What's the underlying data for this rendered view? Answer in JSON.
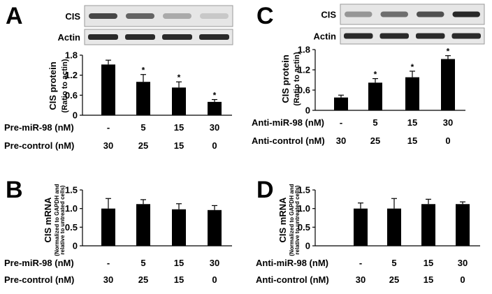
{
  "chart_data": [
    {
      "panel": "A",
      "type": "bar",
      "blot_labels": [
        "CIS",
        "Actin"
      ],
      "ylabel": "CIS protein",
      "ylabel_sub": "(Ratio to actin)",
      "ylim": [
        0,
        1.8
      ],
      "yticks": [
        "0",
        "0.6",
        "1.2",
        "1.8"
      ],
      "categories": [
        "-",
        "5",
        "15",
        "30"
      ],
      "values": [
        1.52,
        1.0,
        0.83,
        0.4
      ],
      "errors": [
        0.13,
        0.22,
        0.17,
        0.07
      ],
      "significance": [
        "",
        "*",
        "*",
        "*"
      ],
      "treatment_label": "Pre-miR-98 (nM)",
      "treatment_values": [
        "-",
        "5",
        "15",
        "30"
      ],
      "control_label": "Pre-control (nM)",
      "control_values": [
        "30",
        "25",
        "15",
        "0"
      ],
      "cis_band_intensity": [
        0.8,
        0.65,
        0.3,
        0.15
      ]
    },
    {
      "panel": "C",
      "type": "bar",
      "blot_labels": [
        "CIS",
        "Actin"
      ],
      "ylabel": "CIS protein",
      "ylabel_sub": "(Ratio to actin)",
      "ylim": [
        0,
        1.8
      ],
      "yticks": [
        "0",
        "0.6",
        "1.2",
        "1.8"
      ],
      "categories": [
        "-",
        "5",
        "15",
        "30"
      ],
      "values": [
        0.38,
        0.82,
        0.98,
        1.52
      ],
      "errors": [
        0.07,
        0.12,
        0.18,
        0.1
      ],
      "significance": [
        "",
        "*",
        "*",
        "*"
      ],
      "treatment_label": "Anti-miR-98 (nM)",
      "treatment_values": [
        "-",
        "5",
        "15",
        "30"
      ],
      "control_label": "Anti-control (nM)",
      "control_values": [
        "30",
        "25",
        "15",
        "0"
      ],
      "cis_band_intensity": [
        0.4,
        0.6,
        0.75,
        0.95
      ]
    },
    {
      "panel": "B",
      "type": "bar",
      "ylabel": "CIS mRNA",
      "ylabel_sub1": "(Normalized to GAPDH and",
      "ylabel_sub2": "relative to untreated cells)",
      "ylim": [
        0,
        1.5
      ],
      "yticks": [
        "0",
        "0.5",
        "1.0",
        "1.5"
      ],
      "categories": [
        "-",
        "5",
        "15",
        "30"
      ],
      "values": [
        1.0,
        1.12,
        0.98,
        0.96
      ],
      "errors": [
        0.27,
        0.12,
        0.15,
        0.12
      ],
      "significance": [
        "",
        "",
        "",
        ""
      ],
      "treatment_label": "Pre-miR-98 (nM)",
      "treatment_values": [
        "-",
        "5",
        "15",
        "30"
      ],
      "control_label": "Pre-control (nM)",
      "control_values": [
        "30",
        "25",
        "15",
        "0"
      ]
    },
    {
      "panel": "D",
      "type": "bar",
      "ylabel": "CIS mRNA",
      "ylabel_sub1": "(Normalized to GAPDH and",
      "ylabel_sub2": "relative to untreated cells)",
      "ylim": [
        0,
        1.5
      ],
      "yticks": [
        "0",
        "0.5",
        "1.0",
        "1.5"
      ],
      "categories": [
        "-",
        "5",
        "15",
        "30"
      ],
      "values": [
        1.0,
        1.0,
        1.12,
        1.12
      ],
      "errors": [
        0.15,
        0.27,
        0.13,
        0.06
      ],
      "significance": [
        "",
        "",
        "",
        ""
      ],
      "treatment_label": "Anti-miR-98 (nM)",
      "treatment_values": [
        "-",
        "5",
        "15",
        "30"
      ],
      "control_label": "Anti-control (nM)",
      "control_values": [
        "30",
        "25",
        "15",
        "0"
      ]
    }
  ]
}
